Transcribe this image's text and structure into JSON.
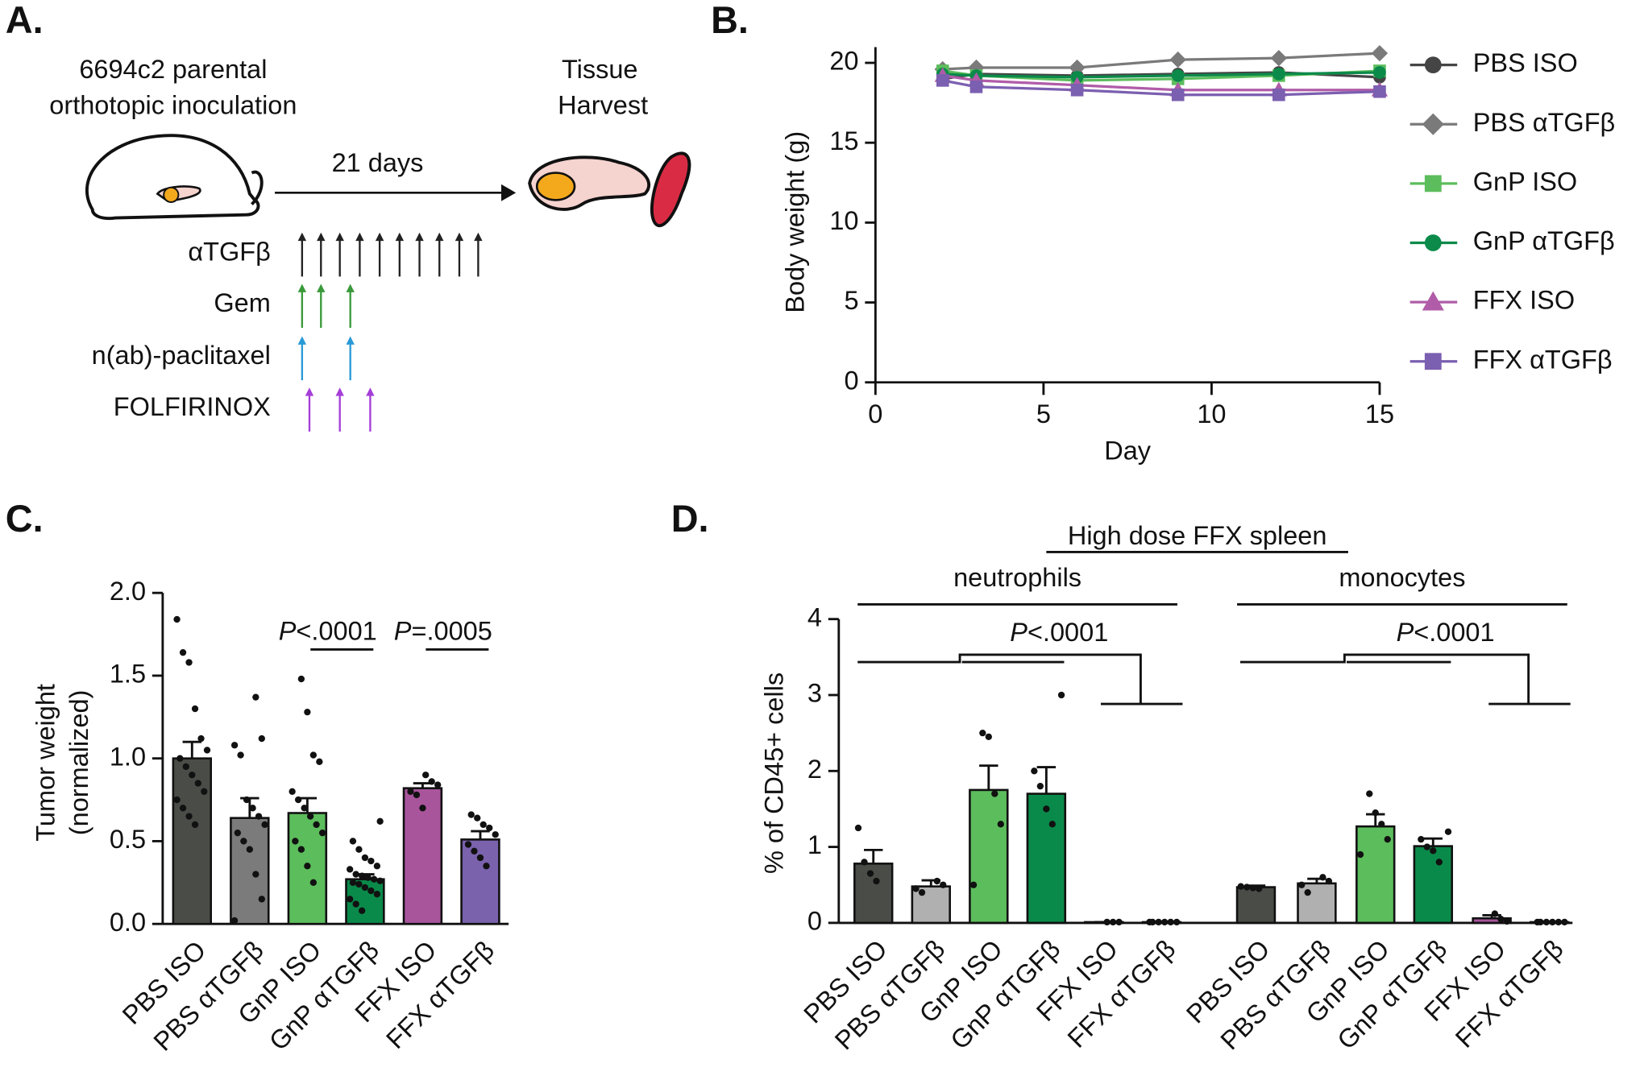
{
  "diagram": {
    "label": "A.",
    "inoculation": [
      "6694c2 parental",
      "orthotopic inoculation"
    ],
    "duration": "21 days",
    "harvest": [
      "Tissue",
      "Harvest"
    ],
    "treatments": [
      "αTGFβ",
      "Gem",
      "n(ab)-paclitaxel",
      "FOLFIRINOX"
    ]
  },
  "chart_data": [
    {
      "type": "line",
      "label": "B.",
      "x_label": "Day",
      "y_label": "Body weight (g)",
      "x": [
        2,
        3,
        6,
        9,
        12,
        15
      ],
      "xlim": [
        0,
        15
      ],
      "xticks": [
        0,
        5,
        10,
        15
      ],
      "ylim": [
        0,
        20
      ],
      "yticks": [
        0,
        5,
        10,
        15,
        20
      ],
      "series": [
        {
          "name": "PBS ISO",
          "color": "#454545",
          "marker": "circle",
          "values": [
            19.0,
            19.3,
            19.2,
            19.3,
            19.4,
            19.1
          ]
        },
        {
          "name": "PBS αTGFβ",
          "color": "#7a7a7a",
          "marker": "diamond",
          "values": [
            19.6,
            19.7,
            19.7,
            20.2,
            20.3,
            20.6
          ]
        },
        {
          "name": "GnP ISO",
          "color": "#5cbd5c",
          "marker": "square",
          "values": [
            19.5,
            19.2,
            18.9,
            19.0,
            19.2,
            19.5
          ]
        },
        {
          "name": "GnP αTGFβ",
          "color": "#0b8a4a",
          "marker": "circle",
          "values": [
            19.3,
            19.2,
            19.1,
            19.2,
            19.3,
            19.4
          ]
        },
        {
          "name": "FFX ISO",
          "color": "#b05ca8",
          "marker": "triangle",
          "values": [
            19.2,
            18.9,
            18.6,
            18.3,
            18.3,
            18.3
          ]
        },
        {
          "name": "FFX αTGFβ",
          "color": "#7b5fb0",
          "marker": "square",
          "values": [
            18.9,
            18.5,
            18.3,
            18.0,
            18.0,
            18.2
          ]
        }
      ]
    },
    {
      "type": "bar",
      "label": "C.",
      "y_label": [
        "Tumor weight",
        "(normalized)"
      ],
      "categories": [
        "PBS ISO",
        "PBS αTGFβ",
        "GnP ISO",
        "GnP αTGFβ",
        "FFX ISO",
        "FFX αTGFβ"
      ],
      "colors": [
        "#4a4d47",
        "#7b7b7b",
        "#5cbd5c",
        "#0a8a4a",
        "#a8559c",
        "#7a62ad"
      ],
      "values": [
        1.0,
        0.64,
        0.67,
        0.27,
        0.82,
        0.51
      ],
      "errors": [
        0.1,
        0.12,
        0.09,
        0.03,
        0.03,
        0.05
      ],
      "points": [
        [
          1.84,
          1.64,
          1.58,
          1.3,
          1.12,
          1.05,
          1.0,
          0.95,
          0.9,
          0.85,
          0.8,
          0.75,
          0.7,
          0.65,
          0.6
        ],
        [
          1.37,
          1.12,
          1.08,
          1.02,
          0.75,
          0.7,
          0.65,
          0.6,
          0.55,
          0.5,
          0.45,
          0.3,
          0.15,
          0.02
        ],
        [
          1.48,
          1.28,
          1.02,
          0.98,
          0.8,
          0.75,
          0.7,
          0.65,
          0.6,
          0.55,
          0.5,
          0.45,
          0.35,
          0.25
        ],
        [
          0.62,
          0.5,
          0.45,
          0.4,
          0.38,
          0.35,
          0.33,
          0.3,
          0.29,
          0.28,
          0.27,
          0.26,
          0.25,
          0.24,
          0.22,
          0.2,
          0.18,
          0.15,
          0.12,
          0.08
        ],
        [
          0.9,
          0.86,
          0.84,
          0.8,
          0.78,
          0.7
        ],
        [
          0.66,
          0.64,
          0.6,
          0.58,
          0.54,
          0.48,
          0.44,
          0.4,
          0.35
        ]
      ],
      "ylim": [
        0,
        2
      ],
      "yticks": [
        {
          "value": 0,
          "label": "0.0"
        },
        {
          "value": 0.5,
          "label": "0.5"
        },
        {
          "value": 1,
          "label": "1.0"
        },
        {
          "value": 1.5,
          "label": "1.5"
        },
        {
          "value": 2,
          "label": "2.0"
        }
      ],
      "annotations": [
        {
          "italic": "P",
          "text": "<.0001"
        },
        {
          "italic": "P",
          "text": "=.0005"
        }
      ]
    },
    {
      "type": "grouped_bar",
      "label": "D.",
      "title": "High dose FFX spleen",
      "y_label": "% of CD45+ cells",
      "ylim": [
        0,
        4
      ],
      "yticks": [
        0,
        1,
        2,
        3,
        4
      ],
      "colors": [
        "#4a4d47",
        "#b0b0b0",
        "#5cbd5c",
        "#0a8a4a",
        "#a8559c",
        "#7a62ad"
      ],
      "groups": [
        {
          "name": "neutrophils",
          "categories": [
            "PBS ISO",
            "PBS αTGFβ",
            "GnP ISO",
            "GnP αTGFβ",
            "FFX ISO",
            "FFX αTGFβ"
          ],
          "values": [
            0.78,
            0.48,
            1.75,
            1.7,
            0.01,
            0.01
          ],
          "errors": [
            0.18,
            0.08,
            0.32,
            0.35,
            0,
            0
          ],
          "points": [
            [
              1.25,
              0.8,
              0.65,
              0.55
            ],
            [
              0.55,
              0.5,
              0.45,
              0.4
            ],
            [
              2.5,
              2.45,
              1.7,
              1.3,
              0.5
            ],
            [
              3.0,
              2.0,
              1.8,
              1.5,
              1.3
            ],
            [
              0.01,
              0.01,
              0.01
            ],
            [
              0.01,
              0.01,
              0.01,
              0.01,
              0.01,
              0.01
            ]
          ],
          "annotation": {
            "italic": "P",
            "text": "<.0001"
          }
        },
        {
          "name": "monocytes",
          "categories": [
            "PBS ISO",
            "PBS αTGFβ",
            "GnP ISO",
            "GnP αTGFβ",
            "FFX ISO",
            "FFX αTGFβ"
          ],
          "values": [
            0.47,
            0.52,
            1.27,
            1.01,
            0.06,
            0.01
          ],
          "errors": [
            0.02,
            0.06,
            0.16,
            0.1,
            0.04,
            0
          ],
          "points": [
            [
              0.48,
              0.47,
              0.46,
              0.45
            ],
            [
              0.6,
              0.55,
              0.5,
              0.4
            ],
            [
              1.7,
              1.45,
              1.3,
              1.1,
              0.9
            ],
            [
              1.2,
              1.1,
              1.0,
              0.95,
              0.8
            ],
            [
              0.12,
              0.05,
              0.02
            ],
            [
              0.01,
              0.01,
              0.01,
              0.01,
              0.01,
              0.01
            ]
          ],
          "annotation": {
            "italic": "P",
            "text": "<.0001"
          }
        }
      ]
    }
  ]
}
